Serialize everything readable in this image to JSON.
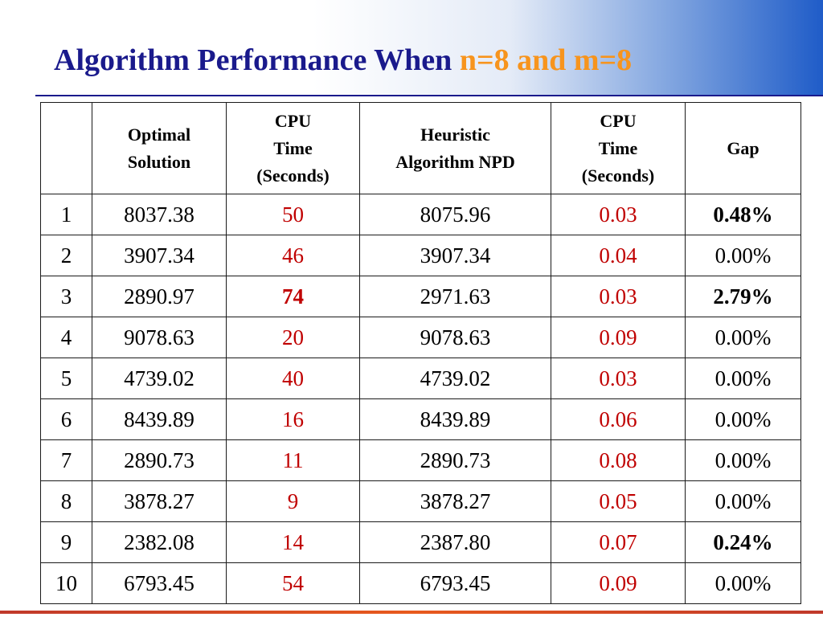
{
  "slide": {
    "title_main": "Algorithm Performance When ",
    "title_accent": "n=8 and m=8",
    "colors": {
      "title": "#1a1a8c",
      "accent": "#f7941d",
      "cpu_time": "#c00000",
      "footer": "#e85a1d"
    }
  },
  "table": {
    "headers": [
      "",
      "Optimal Solution",
      "CPU Time (Seconds)",
      "Heuristic Algorithm NPD",
      "CPU Time (Seconds)",
      "Gap"
    ],
    "header_lines": {
      "optimal": [
        "Optimal",
        "Solution"
      ],
      "cpu1": [
        "CPU",
        "Time",
        "(Seconds)"
      ],
      "heuristic": [
        "Heuristic",
        "Algorithm NPD"
      ],
      "cpu2": [
        "CPU",
        "Time",
        "(Seconds)"
      ],
      "gap": "Gap"
    },
    "rows": [
      {
        "id": "1",
        "optimal": "8037.38",
        "cpu1": "50",
        "heuristic": "8075.96",
        "cpu2": "0.03",
        "gap": "0.48%",
        "cpu1_bold": false,
        "gap_bold": true
      },
      {
        "id": "2",
        "optimal": "3907.34",
        "cpu1": "46",
        "heuristic": "3907.34",
        "cpu2": "0.04",
        "gap": "0.00%",
        "cpu1_bold": false,
        "gap_bold": false
      },
      {
        "id": "3",
        "optimal": "2890.97",
        "cpu1": "74",
        "heuristic": "2971.63",
        "cpu2": "0.03",
        "gap": "2.79%",
        "cpu1_bold": true,
        "gap_bold": true
      },
      {
        "id": "4",
        "optimal": "9078.63",
        "cpu1": "20",
        "heuristic": "9078.63",
        "cpu2": "0.09",
        "gap": "0.00%",
        "cpu1_bold": false,
        "gap_bold": false
      },
      {
        "id": "5",
        "optimal": "4739.02",
        "cpu1": "40",
        "heuristic": "4739.02",
        "cpu2": "0.03",
        "gap": "0.00%",
        "cpu1_bold": false,
        "gap_bold": false
      },
      {
        "id": "6",
        "optimal": "8439.89",
        "cpu1": "16",
        "heuristic": "8439.89",
        "cpu2": "0.06",
        "gap": "0.00%",
        "cpu1_bold": false,
        "gap_bold": false
      },
      {
        "id": "7",
        "optimal": "2890.73",
        "cpu1": "11",
        "heuristic": "2890.73",
        "cpu2": "0.08",
        "gap": "0.00%",
        "cpu1_bold": false,
        "gap_bold": false
      },
      {
        "id": "8",
        "optimal": "3878.27",
        "cpu1": "9",
        "heuristic": "3878.27",
        "cpu2": "0.05",
        "gap": "0.00%",
        "cpu1_bold": false,
        "gap_bold": false
      },
      {
        "id": "9",
        "optimal": "2382.08",
        "cpu1": "14",
        "heuristic": "2387.80",
        "cpu2": "0.07",
        "gap": "0.24%",
        "cpu1_bold": false,
        "gap_bold": true
      },
      {
        "id": "10",
        "optimal": "6793.45",
        "cpu1": "54",
        "heuristic": "6793.45",
        "cpu2": "0.09",
        "gap": "0.00%",
        "cpu1_bold": false,
        "gap_bold": false
      }
    ]
  }
}
